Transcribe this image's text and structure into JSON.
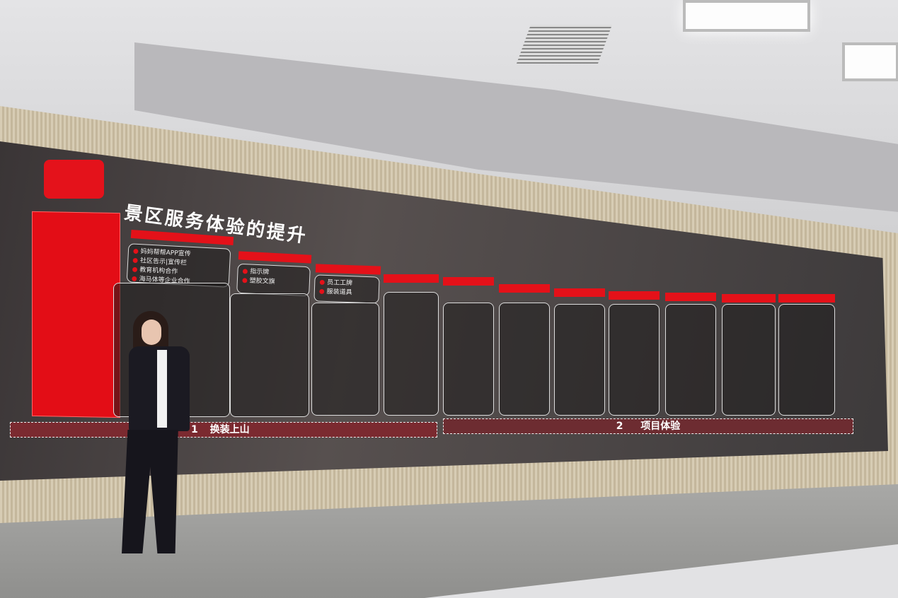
{
  "screen": {
    "title": "景区服务体验的提升",
    "sections": [
      {
        "number": "1",
        "label": "换装上山"
      },
      {
        "number": "2",
        "label": "项目体验"
      }
    ],
    "first_column_items": [
      "妈妈帮帮APP宣传",
      "社区告示|宣传栏",
      "教育机构合作",
      "海马体等企业合作"
    ],
    "second_column_items": [
      "指示牌",
      "塑胶文旗"
    ],
    "third_column_items": [
      "员工工牌",
      "服装道具"
    ],
    "accent_color": "#e41119"
  }
}
